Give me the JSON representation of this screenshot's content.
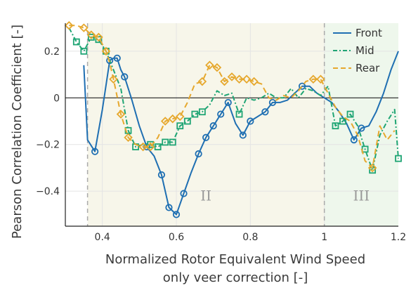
{
  "chart_data": {
    "type": "line",
    "xlabel": "Normalized Rotor Equivalent Wind Speed",
    "xlabel_line2": "only veer correction [-]",
    "ylabel": "Pearson Correlation Coefficient [-]",
    "xlim": [
      0.3,
      1.2
    ],
    "ylim": [
      -0.55,
      0.32
    ],
    "xticks": [
      0.4,
      0.6,
      0.8,
      1.0,
      1.2
    ],
    "xtick_labels": [
      "0.4",
      "0.6",
      "0.8",
      "1",
      "1.2"
    ],
    "yticks": [
      -0.4,
      -0.2,
      0,
      0.2
    ],
    "ytick_labels": [
      "−0.4",
      "−0.2",
      "0",
      "0.2"
    ],
    "region_boundaries": [
      0.36,
      1.0
    ],
    "region_labels": [
      {
        "text": "II",
        "x": 0.68,
        "y": -0.44
      },
      {
        "text": "III",
        "x": 1.1,
        "y": -0.44
      }
    ],
    "colors": {
      "front": "#1f6fb2",
      "mid": "#1fa574",
      "rear": "#e6a82e",
      "region1_shade": "#f7f6ea",
      "region3_shade": "#eef7ec"
    },
    "legend_position": "top-right",
    "series": [
      {
        "name": "Front",
        "color": "#1f6fb2",
        "dash": "solid",
        "marker": "circle",
        "x": [
          0.35,
          0.36,
          0.38,
          0.4,
          0.42,
          0.43,
          0.44,
          0.45,
          0.46,
          0.48,
          0.5,
          0.52,
          0.54,
          0.56,
          0.58,
          0.6,
          0.62,
          0.64,
          0.66,
          0.68,
          0.7,
          0.72,
          0.74,
          0.76,
          0.78,
          0.8,
          0.82,
          0.84,
          0.86,
          0.88,
          0.9,
          0.92,
          0.94,
          0.96,
          0.98,
          1.0,
          1.02,
          1.04,
          1.06,
          1.08,
          1.1,
          1.12,
          1.14,
          1.16,
          1.18,
          1.2
        ],
        "y": [
          0.14,
          -0.18,
          -0.23,
          -0.05,
          0.16,
          0.17,
          0.17,
          0.12,
          0.09,
          -0.01,
          -0.12,
          -0.21,
          -0.25,
          -0.33,
          -0.47,
          -0.5,
          -0.41,
          -0.32,
          -0.24,
          -0.17,
          -0.12,
          -0.07,
          -0.02,
          -0.11,
          -0.16,
          -0.1,
          -0.08,
          -0.06,
          -0.02,
          -0.02,
          -0.01,
          0.02,
          0.05,
          0.05,
          0.02,
          0.0,
          -0.02,
          -0.06,
          -0.11,
          -0.18,
          -0.13,
          -0.12,
          -0.06,
          0.02,
          0.12,
          0.2
        ],
        "marker_x": [
          0.38,
          0.42,
          0.44,
          0.46,
          0.52,
          0.56,
          0.58,
          0.6,
          0.62,
          0.66,
          0.68,
          0.7,
          0.72,
          0.74,
          0.78,
          0.8,
          0.84,
          0.86,
          0.94,
          1.08,
          1.1
        ]
      },
      {
        "name": "Mid",
        "color": "#1fa574",
        "dash": "dashdot",
        "marker": "square",
        "x": [
          0.31,
          0.33,
          0.35,
          0.37,
          0.39,
          0.41,
          0.43,
          0.45,
          0.47,
          0.49,
          0.51,
          0.53,
          0.55,
          0.57,
          0.59,
          0.61,
          0.63,
          0.65,
          0.67,
          0.69,
          0.71,
          0.73,
          0.75,
          0.77,
          0.79,
          0.81,
          0.83,
          0.85,
          0.87,
          0.89,
          0.91,
          0.93,
          0.95,
          0.97,
          0.99,
          1.01,
          1.03,
          1.05,
          1.07,
          1.09,
          1.11,
          1.13,
          1.15,
          1.17,
          1.19,
          1.2
        ],
        "y": [
          0.3,
          0.24,
          0.2,
          0.26,
          0.25,
          0.2,
          0.12,
          0.04,
          -0.14,
          -0.21,
          -0.2,
          -0.2,
          -0.21,
          -0.19,
          -0.19,
          -0.12,
          -0.1,
          -0.07,
          -0.06,
          -0.03,
          0.03,
          0.01,
          0.02,
          -0.07,
          0.0,
          -0.01,
          0.0,
          0.02,
          0.0,
          0.0,
          0.04,
          0.0,
          0.04,
          0.03,
          0.01,
          0.05,
          -0.12,
          -0.1,
          -0.07,
          -0.12,
          -0.22,
          -0.31,
          -0.16,
          -0.1,
          -0.05,
          -0.26
        ],
        "marker_x": [
          0.33,
          0.35,
          0.37,
          0.39,
          0.41,
          0.47,
          0.49,
          0.53,
          0.55,
          0.57,
          0.59,
          0.61,
          0.63,
          0.65,
          0.67,
          0.77,
          1.03,
          1.05,
          1.07,
          1.11,
          1.13,
          1.2
        ]
      },
      {
        "name": "Rear",
        "color": "#e6a82e",
        "dash": "dash",
        "marker": "diamond",
        "x": [
          0.31,
          0.33,
          0.35,
          0.37,
          0.39,
          0.41,
          0.42,
          0.43,
          0.45,
          0.47,
          0.49,
          0.51,
          0.53,
          0.55,
          0.57,
          0.59,
          0.61,
          0.63,
          0.65,
          0.67,
          0.69,
          0.71,
          0.73,
          0.75,
          0.77,
          0.79,
          0.81,
          0.83,
          0.85,
          0.87,
          0.89,
          0.91,
          0.93,
          0.95,
          0.97,
          0.99,
          1.01,
          1.03,
          1.05,
          1.07,
          1.09,
          1.11,
          1.13,
          1.15,
          1.17,
          1.19
        ],
        "y": [
          0.31,
          0.31,
          0.3,
          0.27,
          0.26,
          0.2,
          0.15,
          0.08,
          -0.07,
          -0.17,
          -0.2,
          -0.21,
          -0.21,
          -0.17,
          -0.1,
          -0.09,
          -0.08,
          -0.02,
          0.06,
          0.07,
          0.14,
          0.13,
          0.07,
          0.09,
          0.08,
          0.08,
          0.07,
          0.06,
          0.0,
          -0.01,
          0.01,
          0.0,
          0.03,
          0.07,
          0.08,
          0.08,
          0.02,
          -0.04,
          -0.08,
          -0.1,
          -0.16,
          -0.27,
          -0.3,
          -0.12,
          -0.18,
          -0.14
        ],
        "marker_x": [
          0.31,
          0.35,
          0.37,
          0.39,
          0.41,
          0.43,
          0.45,
          0.47,
          0.51,
          0.53,
          0.57,
          0.59,
          0.61,
          0.67,
          0.69,
          0.71,
          0.73,
          0.75,
          0.77,
          0.79,
          0.81,
          0.97,
          0.99,
          1.13
        ]
      }
    ]
  }
}
